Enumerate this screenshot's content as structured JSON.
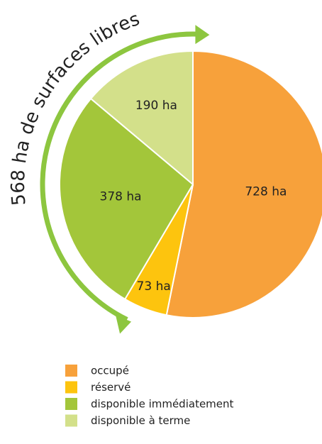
{
  "chart_data": {
    "type": "pie",
    "annotation": "568 ha de surfaces libres",
    "categories": [
      "occupé",
      "réservé",
      "disponible immédiatement",
      "disponible à terme"
    ],
    "values": [
      728,
      73,
      378,
      190
    ],
    "value_labels": [
      "728 ha",
      "73 ha",
      "378 ha",
      "190 ha"
    ],
    "colors": [
      "#f7a13b",
      "#fdc40e",
      "#a3c63a",
      "#d3e08a"
    ]
  }
}
